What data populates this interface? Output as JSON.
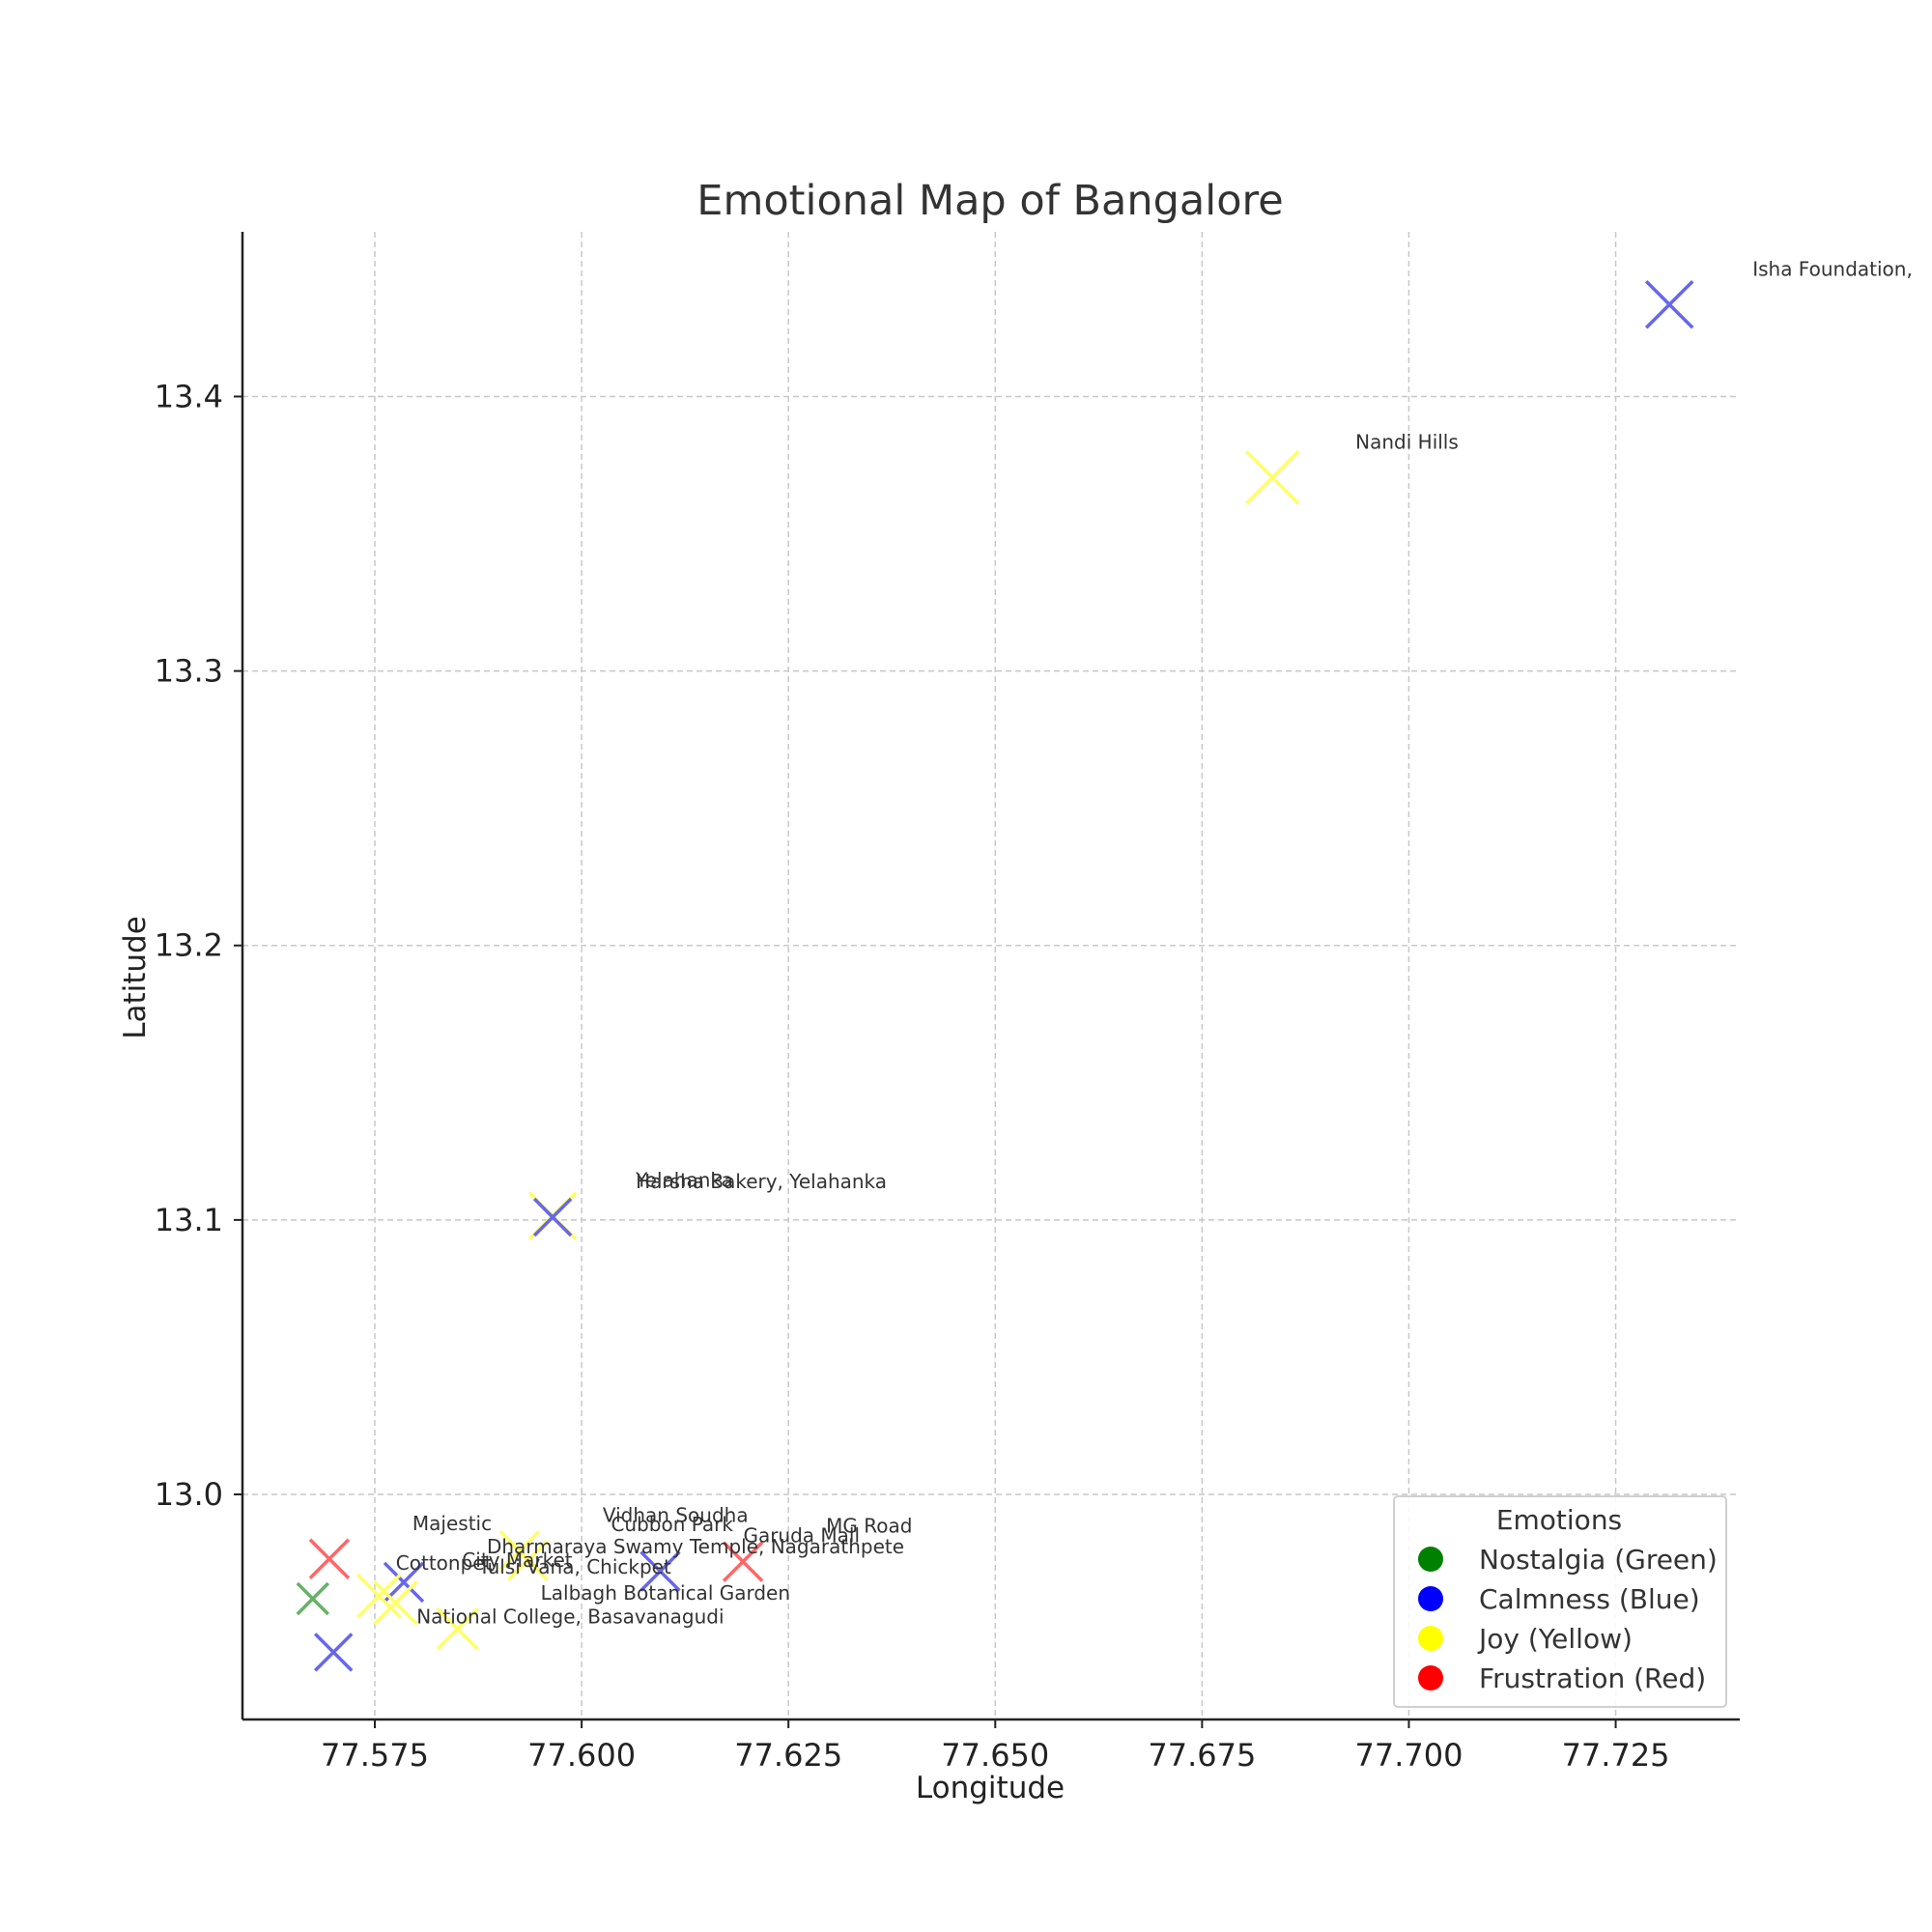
{
  "chart_data": {
    "type": "scatter",
    "title": "Emotional Map of Bangalore",
    "xlabel": "Longitude",
    "ylabel": "Latitude",
    "xlim": [
      77.559,
      77.74
    ],
    "ylim": [
      12.918,
      13.46
    ],
    "xticks": [
      77.575,
      77.6,
      77.625,
      77.65,
      77.675,
      77.7,
      77.725
    ],
    "xtick_labels": [
      "77.575",
      "77.600",
      "77.625",
      "77.650",
      "77.675",
      "77.700",
      "77.725"
    ],
    "yticks": [
      13.0,
      13.1,
      13.2,
      13.3,
      13.4
    ],
    "ytick_labels": [
      "13.0",
      "13.1",
      "13.2",
      "13.3",
      "13.4"
    ],
    "grid": true,
    "legend": {
      "title": "Emotions",
      "position": "lower-right",
      "entries": [
        {
          "label": "Nostalgia (Green)",
          "color": "#008000"
        },
        {
          "label": "Calmness (Blue)",
          "color": "#0000ff"
        },
        {
          "label": "Joy (Yellow)",
          "color": "#ffff00"
        },
        {
          "label": "Frustration (Red)",
          "color": "#ff0000"
        }
      ]
    },
    "marker_colors": {
      "Nostalgia": "#66b266",
      "Calmness": "#6666ee",
      "Joy": "#ffff66",
      "Frustration": "#ff6666"
    },
    "points": [
      {
        "label": "Isha Foundation,",
        "x": 77.7315,
        "y": 13.4335,
        "emotion": "Calmness",
        "size": 1.2
      },
      {
        "label": "Nandi Hills",
        "x": 77.6835,
        "y": 13.3705,
        "emotion": "Joy",
        "size": 1.35
      },
      {
        "label": "Yelahanka",
        "x": 77.5965,
        "y": 13.1015,
        "emotion": "Joy",
        "size": 1.2
      },
      {
        "label": "Harsha Bakery, Yelahanka",
        "x": 77.5965,
        "y": 13.101,
        "emotion": "Calmness",
        "size": 0.95
      },
      {
        "label": "Vidhan Soudha",
        "x": 77.5925,
        "y": 12.9795,
        "emotion": "Joy",
        "size": 1.0
      },
      {
        "label": "Cubbon Park",
        "x": 77.5935,
        "y": 12.976,
        "emotion": "Joy",
        "size": 1.0
      },
      {
        "label": "MG Road",
        "x": 77.6195,
        "y": 12.9755,
        "emotion": "Frustration",
        "size": 1.0
      },
      {
        "label": "Garuda Mall",
        "x": 77.6095,
        "y": 12.972,
        "emotion": "Calmness",
        "size": 1.0
      },
      {
        "label": "Majestic",
        "x": 77.5695,
        "y": 12.9765,
        "emotion": "Frustration",
        "size": 1.0
      },
      {
        "label": "Dharmaraya Swamy Temple, Nagarathpete",
        "x": 77.5785,
        "y": 12.968,
        "emotion": "Calmness",
        "size": 1.0
      },
      {
        "label": "Tulsi Vana, Chickpet",
        "x": 77.5775,
        "y": 12.9605,
        "emotion": "Joy",
        "size": 1.1
      },
      {
        "label": "Cottonpet",
        "x": 77.5675,
        "y": 12.962,
        "emotion": "Nostalgia",
        "size": 0.8
      },
      {
        "label": "City Market",
        "x": 77.5755,
        "y": 12.963,
        "emotion": "Joy",
        "size": 1.1
      },
      {
        "label": "Lalbagh Botanical Garden",
        "x": 77.585,
        "y": 12.951,
        "emotion": "Joy",
        "size": 1.05
      },
      {
        "label": "National College, Basavanagudi",
        "x": 77.57,
        "y": 12.9425,
        "emotion": "Calmness",
        "size": 0.95
      }
    ]
  }
}
